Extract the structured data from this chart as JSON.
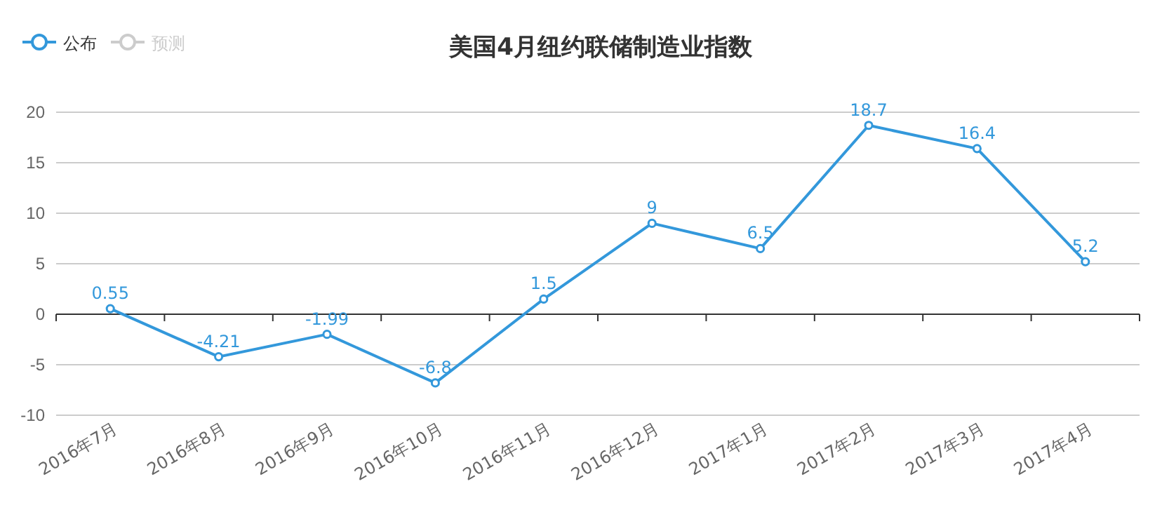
{
  "chart_data": {
    "type": "line",
    "title": "美国4月纽约联储制造业指数",
    "categories": [
      "2016年7月",
      "2016年8月",
      "2016年9月",
      "2016年10月",
      "2016年11月",
      "2016年12月",
      "2017年1月",
      "2017年2月",
      "2017年3月",
      "2017年4月"
    ],
    "series": [
      {
        "name": "公布",
        "color": "#3398db",
        "values": [
          0.55,
          -4.21,
          -1.99,
          -6.8,
          1.5,
          9,
          6.5,
          18.7,
          16.4,
          5.2
        ]
      },
      {
        "name": "预测",
        "color": "#cccccc",
        "values": [
          null,
          null,
          null,
          null,
          null,
          null,
          null,
          null,
          null,
          null
        ]
      }
    ],
    "ylim": [
      -10,
      20
    ],
    "yticks": [
      -10,
      -5,
      0,
      5,
      10,
      15,
      20
    ],
    "grid": "y",
    "legend": "top left",
    "marker": "circle",
    "data_labels": true
  }
}
